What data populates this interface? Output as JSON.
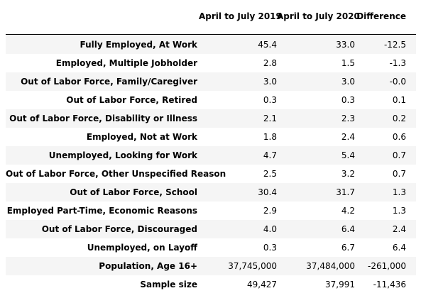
{
  "table": {
    "header": [
      "April to July 2019",
      "April to July 2020",
      "Difference"
    ],
    "rows": [
      [
        "Fully Employed, At Work",
        "45.4",
        "33.0",
        "-12.5"
      ],
      [
        "Employed, Multiple Jobholder",
        "2.8",
        "1.5",
        "-1.3"
      ],
      [
        "Out of Labor Force, Family/Caregiver",
        "3.0",
        "3.0",
        "-0.0"
      ],
      [
        "Out of Labor Force, Retired",
        "0.3",
        "0.3",
        "0.1"
      ],
      [
        "Out of Labor Force, Disability or Illness",
        "2.1",
        "2.3",
        "0.2"
      ],
      [
        "Employed, Not at Work",
        "1.8",
        "2.4",
        "0.6"
      ],
      [
        "Unemployed, Looking for Work",
        "4.7",
        "5.4",
        "0.7"
      ],
      [
        "Out of Labor Force, Other Unspecified Reason",
        "2.5",
        "3.2",
        "0.7"
      ],
      [
        "Out of Labor Force, School",
        "30.4",
        "31.7",
        "1.3"
      ],
      [
        "Employed Part-Time, Economic Reasons",
        "2.9",
        "4.2",
        "1.3"
      ],
      [
        "Out of Labor Force, Discouraged",
        "4.0",
        "6.4",
        "2.4"
      ],
      [
        "Unemployed, on Layoff",
        "0.3",
        "6.7",
        "6.4"
      ],
      [
        "Population, Age 16+",
        "37,745,000",
        "37,484,000",
        "-261,000"
      ],
      [
        "Sample size",
        "49,427",
        "37,991",
        "-11,436"
      ]
    ]
  }
}
